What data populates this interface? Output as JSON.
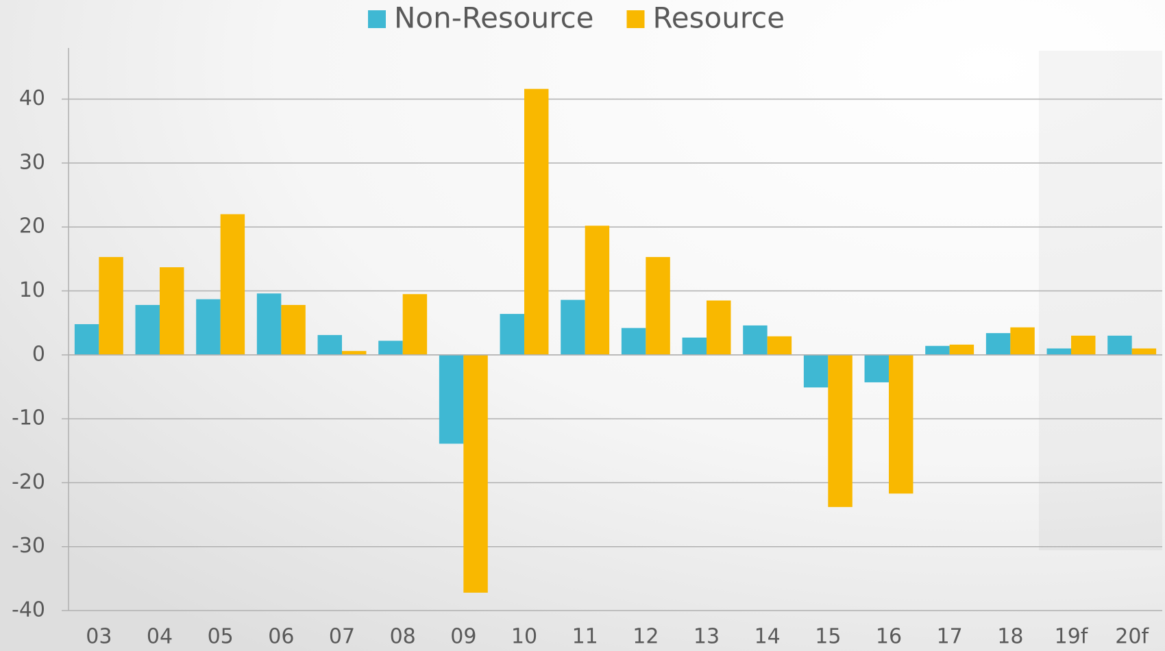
{
  "chart_data": {
    "type": "bar",
    "categories": [
      "03",
      "04",
      "05",
      "06",
      "07",
      "08",
      "09",
      "10",
      "11",
      "12",
      "13",
      "14",
      "15",
      "16",
      "17",
      "18",
      "19f",
      "20f"
    ],
    "series": [
      {
        "name": "Non-Resource",
        "color": "#3fb8d3",
        "values": [
          4.8,
          7.8,
          8.7,
          9.6,
          3.1,
          2.2,
          -13.9,
          6.4,
          8.6,
          4.2,
          2.7,
          4.6,
          -5.1,
          -4.3,
          1.4,
          3.4,
          1.0,
          3.0
        ]
      },
      {
        "name": "Resource",
        "color": "#f9b800",
        "values": [
          15.3,
          13.7,
          22.0,
          7.8,
          0.6,
          9.5,
          -37.2,
          41.6,
          20.2,
          15.3,
          8.5,
          2.9,
          -23.8,
          -21.7,
          1.6,
          4.3,
          3.0,
          1.0
        ]
      }
    ],
    "ylim": [
      -40,
      48
    ],
    "yticks": [
      -40,
      -30,
      -20,
      -10,
      0,
      10,
      20,
      30,
      40
    ],
    "grid": true
  }
}
